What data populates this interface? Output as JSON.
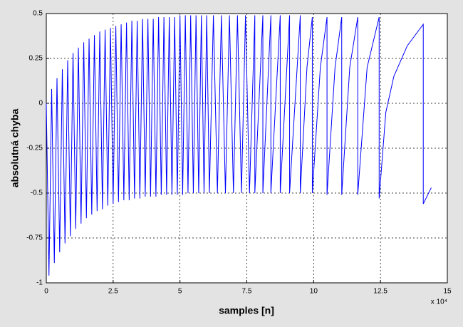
{
  "chart_data": {
    "type": "line",
    "xlabel": "samples [n]",
    "ylabel": "absolutná chyba",
    "x_multiplier": "x 10⁴",
    "xlim": [
      0,
      15
    ],
    "xticks": [
      0,
      2.5,
      5,
      7.5,
      10,
      12.5,
      15
    ],
    "ylim": [
      -1,
      0.5
    ],
    "yticks": [
      -1,
      -0.75,
      -0.5,
      -0.25,
      0,
      0.25,
      0.5
    ],
    "grid": true,
    "series": [
      {
        "color": "#0000ff",
        "x": [
          0,
          0.1,
          0.2,
          0.3,
          0.4,
          0.5,
          0.6,
          0.7,
          0.8,
          0.9,
          1.0,
          1.1,
          1.2,
          1.3,
          1.4,
          1.5,
          1.6,
          1.7,
          1.8,
          1.9,
          2.0,
          2.1,
          2.2,
          2.3,
          2.4,
          2.5,
          2.6,
          2.7,
          2.8,
          2.9,
          3.0,
          3.1,
          3.2,
          3.3,
          3.4,
          3.5,
          3.6,
          3.7,
          3.8,
          3.9,
          4.0,
          4.1,
          4.2,
          4.3,
          4.4,
          4.5,
          4.6,
          4.7,
          4.8,
          4.9,
          5.0,
          5.1,
          5.2,
          5.3,
          5.4,
          5.5,
          5.6,
          5.7,
          5.8,
          5.9,
          6.0,
          6.1,
          6.25,
          6.4,
          6.55,
          6.7,
          6.85,
          7.0,
          7.15,
          7.3,
          7.45,
          7.6,
          7.8,
          7.8,
          8.1,
          8.1,
          8.4,
          8.4,
          8.75,
          8.75,
          9.1,
          9.1,
          9.5,
          9.5,
          9.75,
          9.95,
          9.95,
          10.25,
          10.5,
          10.5,
          10.8,
          11.05,
          11.05,
          11.35,
          11.65,
          11.65,
          12.0,
          12.45,
          12.45,
          12.7,
          13.0,
          13.5,
          14.1,
          14.1,
          14.4
        ],
        "values": [
          0,
          -0.96,
          0.08,
          -0.89,
          0.14,
          -0.83,
          0.19,
          -0.78,
          0.24,
          -0.74,
          0.28,
          -0.7,
          0.31,
          -0.67,
          0.34,
          -0.64,
          0.36,
          -0.62,
          0.38,
          -0.6,
          0.4,
          -0.59,
          0.41,
          -0.57,
          0.42,
          -0.56,
          0.43,
          -0.55,
          0.44,
          -0.54,
          0.45,
          -0.54,
          0.46,
          -0.53,
          0.46,
          -0.53,
          0.47,
          -0.52,
          0.47,
          -0.52,
          0.47,
          -0.52,
          0.48,
          -0.51,
          0.48,
          -0.51,
          0.48,
          -0.51,
          0.48,
          -0.51,
          0.49,
          -0.51,
          0.49,
          -0.5,
          0.49,
          -0.5,
          0.49,
          -0.5,
          0.49,
          -0.5,
          0.49,
          -0.5,
          0.49,
          -0.5,
          0.49,
          -0.5,
          0.49,
          -0.5,
          0.49,
          -0.5,
          0.49,
          -0.5,
          0.49,
          -0.5,
          0.49,
          -0.5,
          0.49,
          -0.5,
          0.49,
          -0.5,
          0.49,
          -0.5,
          0.49,
          -0.5,
          0.2,
          0.48,
          -0.5,
          0.2,
          0.48,
          -0.51,
          0.2,
          0.48,
          -0.51,
          0.2,
          0.48,
          -0.51,
          0.2,
          0.48,
          -0.53,
          -0.05,
          0.15,
          0.32,
          0.44,
          -0.56,
          -0.47
        ]
      }
    ]
  }
}
